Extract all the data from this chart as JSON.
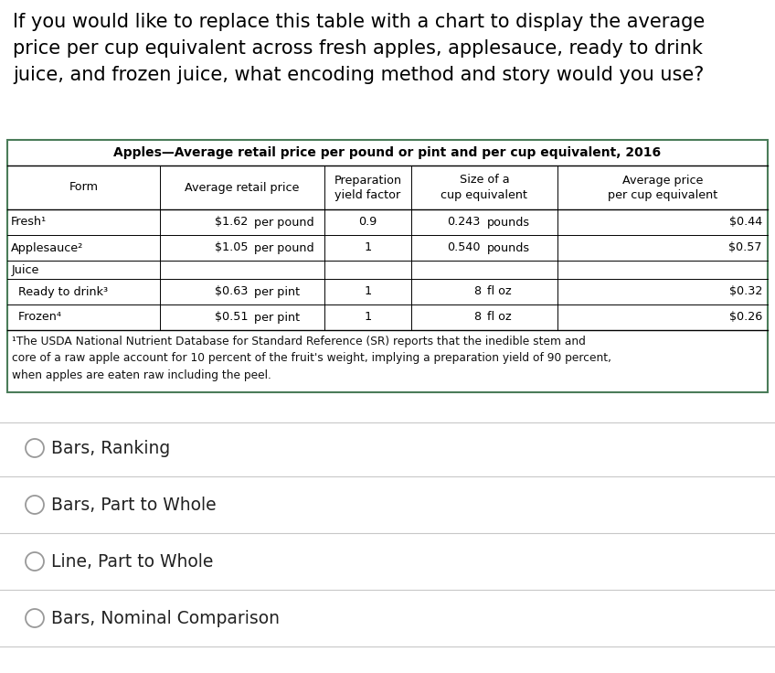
{
  "question_text": "If you would like to replace this table with a chart to display the average\nprice per cup equivalent across fresh apples, applesauce, ready to drink\njuice, and frozen juice, what encoding method and story would you use?",
  "table_title": "Apples—Average retail price per pound or pint and per cup equivalent, 2016",
  "footnote_text": "¹The USDA National Nutrient Database for Standard Reference (SR) reports that the inedible stem and\ncore of a raw apple account for 10 percent of the fruit's weight, implying a preparation yield of 90 percent,\nwhen apples are eaten raw including the peel.",
  "options": [
    "Bars, Ranking",
    "Bars, Part to Whole",
    "Line, Part to Whole",
    "Bars, Nominal Comparison"
  ],
  "bg_color": "#ffffff",
  "table_border_color": "#4a7c59",
  "text_color": "#000000",
  "footnote_color": "#111111",
  "option_color": "#222222",
  "separator_color": "#c8c8c8",
  "question_fontsize": 15.0,
  "table_title_fontsize": 10.0,
  "header_fontsize": 9.2,
  "cell_fontsize": 9.2,
  "footnote_fontsize": 8.8,
  "option_fontsize": 13.5
}
